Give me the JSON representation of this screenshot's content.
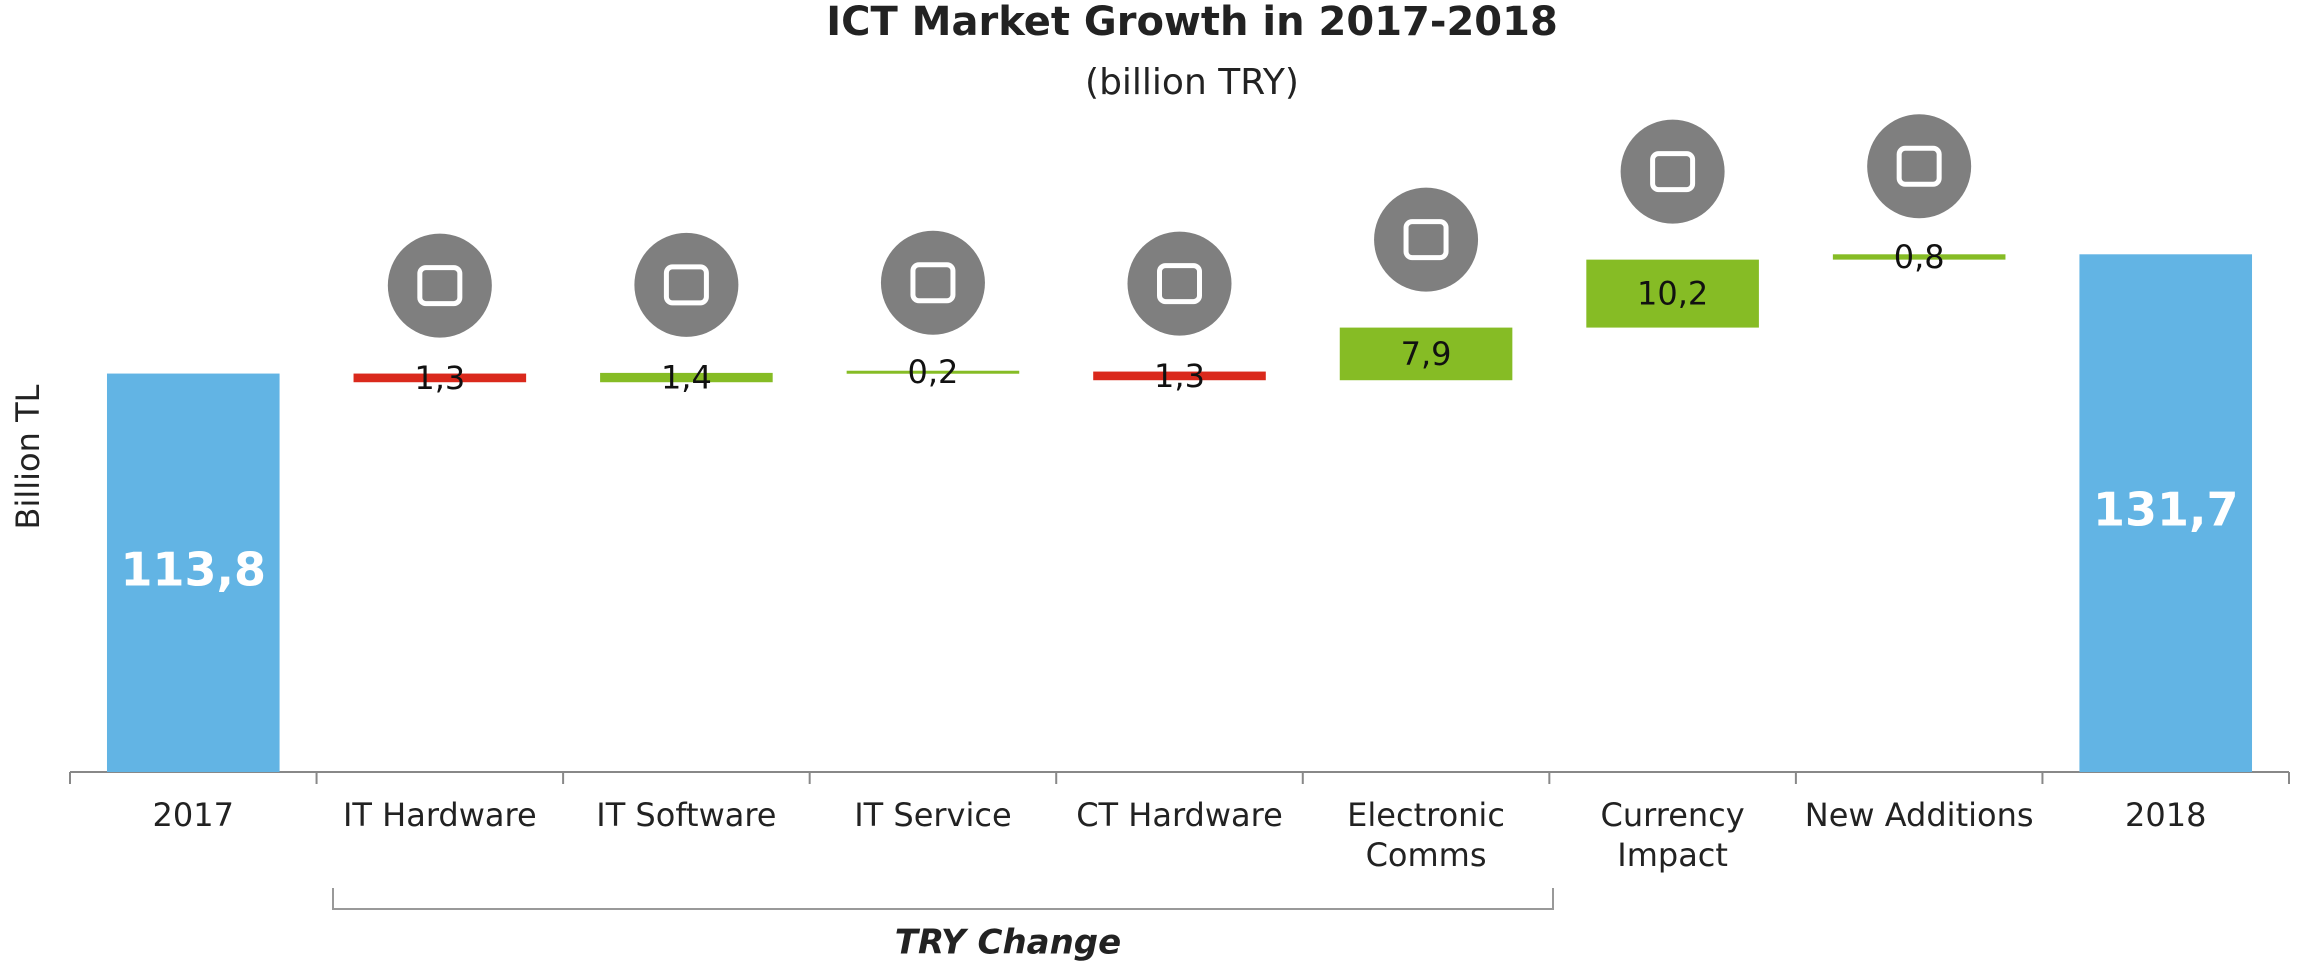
{
  "chart_data": {
    "type": "waterfall",
    "title": "ICT Market Growth in 2017-2018",
    "subtitle": "(billion TRY)",
    "y_label": "Billion TL",
    "annotation": "TRY Change",
    "categories": [
      "2017",
      "IT Hardware",
      "IT Software",
      "IT Service",
      "CT Hardware",
      "Electronic Comms",
      "Currency Impact",
      "New Additions",
      "2018"
    ],
    "values": [
      113.8,
      -1.3,
      1.4,
      0.2,
      -1.3,
      7.9,
      10.2,
      0.8,
      131.7
    ],
    "value_labels": [
      "113,8",
      "1,3",
      "1,4",
      "0,2",
      "1,3",
      "7,9",
      "10,2",
      "0,8",
      "131,7"
    ],
    "totals": [
      0,
      8
    ],
    "total_color": "#62b4e4",
    "increase_color": "#86bc25",
    "decrease_color": "#da291c",
    "ylim": [
      54,
      140
    ]
  }
}
